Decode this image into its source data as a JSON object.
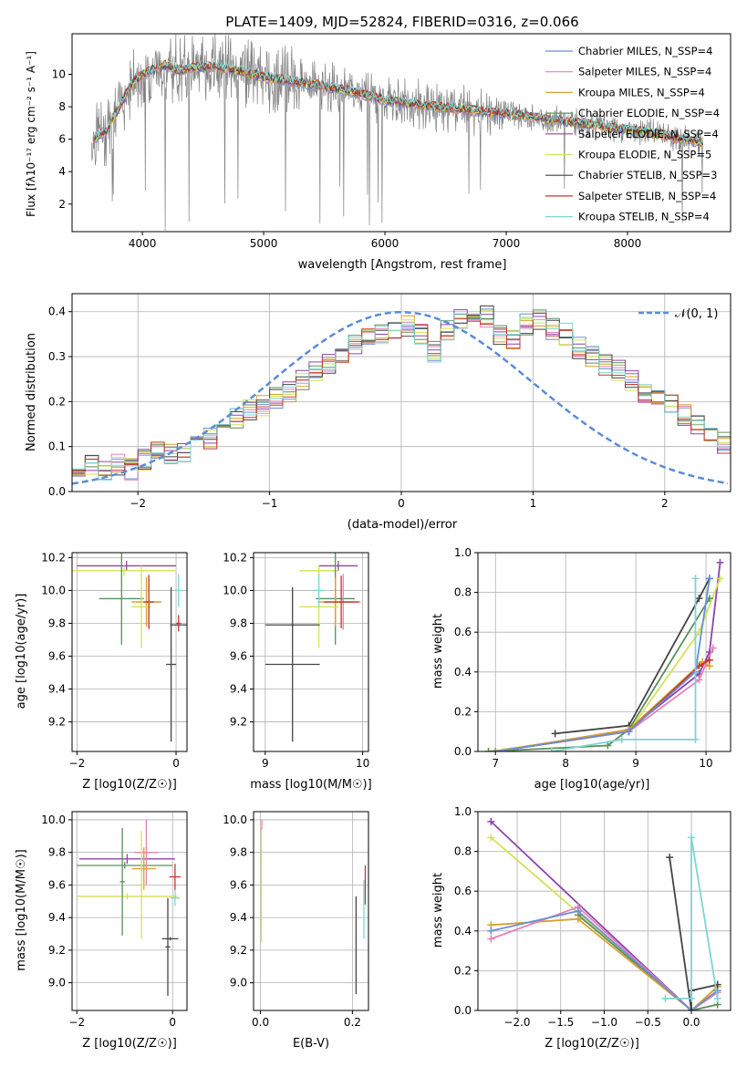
{
  "chart_data": [
    {
      "id": "spectrum",
      "type": "line",
      "title": "PLATE=1409, MJD=52824, FIBERID=0316, z=0.066",
      "xlabel": "wavelength [Angstrom, rest frame]",
      "ylabel": "Flux [fλ10⁻¹⁷ erg cm⁻² s⁻¹ A⁻¹]",
      "xlim": [
        3420,
        8850
      ],
      "ylim": [
        0.3,
        12.5
      ],
      "xticks": [
        4000,
        5000,
        6000,
        7000,
        8000
      ],
      "yticks": [
        2,
        4,
        6,
        8,
        10
      ],
      "grid": false,
      "legend_position": "top-right",
      "legend": [
        {
          "label": "Chabrier MILES, N_SSP=4",
          "color": "#6a8fd6"
        },
        {
          "label": "Salpeter MILES, N_SSP=4",
          "color": "#e282b9"
        },
        {
          "label": "Kroupa MILES, N_SSP=4",
          "color": "#d9a02e"
        },
        {
          "label": "Chabrier ELODIE, N_SSP=4",
          "color": "#5a8f5c"
        },
        {
          "label": "Salpeter ELODIE, N_SSP=4",
          "color": "#8e44ad"
        },
        {
          "label": "Kroupa ELODIE, N_SSP=5",
          "color": "#d4e157"
        },
        {
          "label": "Chabrier STELIB, N_SSP=3",
          "color": "#444444"
        },
        {
          "label": "Salpeter STELIB, N_SSP=4",
          "color": "#c0392b"
        },
        {
          "label": "Kroupa STELIB, N_SSP=4",
          "color": "#7fd3d3"
        }
      ],
      "observed_color": "#808080",
      "model_anchor_points": {
        "x": [
          3600,
          3700,
          3800,
          3900,
          4000,
          4100,
          4200,
          4300,
          4400,
          4600,
          4800,
          5000,
          5200,
          5400,
          5600,
          5800,
          6000,
          6200,
          6400,
          6600,
          6800,
          7000,
          7200,
          7400,
          7600,
          7800,
          8000,
          8200,
          8400,
          8600
        ],
        "y": [
          6.0,
          6.5,
          7.8,
          9.3,
          10.0,
          10.3,
          10.6,
          10.2,
          10.4,
          10.5,
          10.2,
          9.8,
          9.6,
          9.4,
          9.1,
          8.8,
          8.4,
          8.2,
          8.0,
          7.9,
          7.7,
          7.6,
          7.4,
          7.2,
          7.0,
          6.8,
          6.6,
          6.4,
          6.1,
          5.8
        ]
      }
    },
    {
      "id": "residuals",
      "type": "histogram",
      "xlabel": "(data-model)/error",
      "ylabel": "Normed distribution",
      "xlim": [
        -2.5,
        2.5
      ],
      "ylim": [
        0,
        0.44
      ],
      "xticks": [
        -2,
        -1,
        0,
        1,
        2
      ],
      "yticks": [
        0.0,
        0.1,
        0.2,
        0.3,
        0.4
      ],
      "grid": true,
      "legend_position": "top-right",
      "reference_curve": {
        "label": "𝒩(0, 1)",
        "color": "#5b8bd9"
      },
      "bin_width": 0.1,
      "bin_start": -2.5,
      "approx_shape": {
        "values": [
          0.05,
          0.06,
          0.05,
          0.06,
          0.05,
          0.07,
          0.09,
          0.08,
          0.09,
          0.1,
          0.12,
          0.13,
          0.16,
          0.18,
          0.19,
          0.21,
          0.22,
          0.25,
          0.27,
          0.28,
          0.3,
          0.33,
          0.34,
          0.35,
          0.36,
          0.37,
          0.35,
          0.31,
          0.36,
          0.38,
          0.37,
          0.39,
          0.35,
          0.34,
          0.37,
          0.38,
          0.36,
          0.35,
          0.32,
          0.3,
          0.28,
          0.27,
          0.25,
          0.22,
          0.2,
          0.19,
          0.17,
          0.15,
          0.12,
          0.11,
          0.1,
          0.09,
          0.08,
          0.07,
          0.06,
          0.06,
          0.05
        ]
      }
    },
    {
      "id": "age_vs_Z",
      "type": "errorbar",
      "xlabel": "Z [log10(Z/Z☉)]",
      "ylabel": "age [log10(age/yr)]",
      "xlim": [
        -2.1,
        0.22
      ],
      "ylim": [
        9.02,
        10.23
      ],
      "xticks": [
        -2,
        0
      ],
      "yticks": [
        9.2,
        9.4,
        9.6,
        9.8,
        10.0,
        10.2
      ],
      "grid": true,
      "points": [
        {
          "color": "#8e44ad",
          "x": -1.0,
          "xerr": 1.0,
          "y": 10.15,
          "yerr": 0.03
        },
        {
          "color": "#d4e157",
          "x": -1.05,
          "xerr": 1.05,
          "y": 10.12,
          "yerr": 0.03
        },
        {
          "color": "#5a8f5c",
          "x": -1.1,
          "xerr": 0.45,
          "y": 9.95,
          "yerr": 0.28
        },
        {
          "color": "#e282b9",
          "x": -0.55,
          "xerr": 0.25,
          "y": 9.93,
          "yerr": 0.17
        },
        {
          "color": "#d9a02e",
          "x": -0.6,
          "xerr": 0.3,
          "y": 9.93,
          "yerr": 0.15
        },
        {
          "color": "#d4e157",
          "x": -0.7,
          "xerr": 0.2,
          "y": 9.9,
          "yerr": 0.25
        },
        {
          "color": "#c0392b",
          "x": -0.55,
          "xerr": 0.1,
          "y": 9.93,
          "yerr": 0.16
        },
        {
          "color": "#7fd3d3",
          "x": 0.05,
          "xerr": 0.07,
          "y": 10.0,
          "yerr": 0.1
        },
        {
          "color": "#444444",
          "x": -0.1,
          "xerr": 0.1,
          "y": 9.55,
          "yerr": 0.47
        },
        {
          "color": "#444444",
          "x": 0.05,
          "xerr": 0.17,
          "y": 9.79,
          "yerr": 0.01
        },
        {
          "color": "#c0392b",
          "x": 0.05,
          "xerr": 0.05,
          "y": 9.8,
          "yerr": 0.05
        }
      ]
    },
    {
      "id": "age_vs_mass",
      "type": "errorbar",
      "xlabel": "mass [log10(M/M☉)]",
      "ylabel": "",
      "xlim": [
        8.88,
        10.06
      ],
      "ylim": [
        9.02,
        10.23
      ],
      "xticks": [
        9,
        10
      ],
      "yticks": [
        9.2,
        9.4,
        9.6,
        9.8,
        10.0,
        10.2
      ],
      "grid": true,
      "points": [
        {
          "color": "#8e44ad",
          "x": 9.75,
          "xerr": 0.2,
          "y": 10.15,
          "yerr": 0.03
        },
        {
          "color": "#d4e157",
          "x": 9.55,
          "xerr": 0.2,
          "y": 10.12,
          "yerr": 0.03
        },
        {
          "color": "#5a8f5c",
          "x": 9.72,
          "xerr": 0.2,
          "y": 9.95,
          "yerr": 0.28
        },
        {
          "color": "#e282b9",
          "x": 9.8,
          "xerr": 0.18,
          "y": 9.93,
          "yerr": 0.17
        },
        {
          "color": "#d9a02e",
          "x": 9.72,
          "xerr": 0.18,
          "y": 9.93,
          "yerr": 0.15
        },
        {
          "color": "#d4e157",
          "x": 9.55,
          "xerr": 0.2,
          "y": 9.9,
          "yerr": 0.25
        },
        {
          "color": "#c0392b",
          "x": 9.78,
          "xerr": 0.18,
          "y": 9.93,
          "yerr": 0.16
        },
        {
          "color": "#7fd3d3",
          "x": 9.55,
          "xerr": 0.06,
          "y": 10.0,
          "yerr": 0.1
        },
        {
          "color": "#444444",
          "x": 9.28,
          "xerr": 0.28,
          "y": 9.55,
          "yerr": 0.47
        },
        {
          "color": "#444444",
          "x": 9.28,
          "xerr": 0.28,
          "y": 9.79,
          "yerr": 0.01
        }
      ]
    },
    {
      "id": "mass_weight_vs_age",
      "type": "line",
      "xlabel": "age [log10(age/yr)]",
      "ylabel": "mass weight",
      "xlim": [
        6.75,
        10.35
      ],
      "ylim": [
        0,
        1.0
      ],
      "xticks": [
        7,
        8,
        9,
        10
      ],
      "yticks": [
        0.0,
        0.2,
        0.4,
        0.6,
        0.8,
        1.0
      ],
      "grid": true,
      "series": [
        {
          "color": "#444444",
          "x": [
            7.85,
            8.9,
            9.9,
            10.05
          ],
          "y": [
            0.09,
            0.13,
            0.77,
            0.87
          ]
        },
        {
          "color": "#8e44ad",
          "x": [
            8.9,
            9.9,
            10.05,
            10.2
          ],
          "y": [
            0.11,
            0.39,
            0.5,
            0.95
          ]
        },
        {
          "color": "#d4e157",
          "x": [
            6.9,
            8.9,
            9.9,
            10.2
          ],
          "y": [
            0.0,
            0.1,
            0.6,
            0.87
          ]
        },
        {
          "color": "#5a8f5c",
          "x": [
            6.9,
            8.6,
            8.9,
            10.05
          ],
          "y": [
            0.0,
            0.03,
            0.11,
            0.77
          ]
        },
        {
          "color": "#d9a02e",
          "x": [
            7.0,
            8.9,
            9.95,
            10.05
          ],
          "y": [
            0.0,
            0.11,
            0.45,
            0.43
          ]
        },
        {
          "color": "#e282b9",
          "x": [
            7.0,
            8.9,
            9.9,
            10.1
          ],
          "y": [
            0.0,
            0.1,
            0.36,
            0.52
          ]
        },
        {
          "color": "#c0392b",
          "x": [
            7.0,
            8.9,
            9.9,
            10.05
          ],
          "y": [
            0.0,
            0.1,
            0.43,
            0.46
          ]
        },
        {
          "color": "#6a8fd6",
          "x": [
            7.0,
            8.9,
            9.85,
            10.05
          ],
          "y": [
            0.0,
            0.1,
            0.4,
            0.87
          ]
        },
        {
          "color": "#7fd3d3",
          "x": [
            7.8,
            8.8,
            9.85,
            9.85
          ],
          "y": [
            0.0,
            0.06,
            0.06,
            0.87
          ]
        }
      ]
    },
    {
      "id": "mass_vs_Z",
      "type": "errorbar",
      "xlabel": "Z [log10(Z/Z☉)]",
      "ylabel": "mass [log10(M/M☉)]",
      "xlim": [
        -2.1,
        0.3
      ],
      "ylim": [
        8.83,
        10.05
      ],
      "xticks": [
        -2,
        0
      ],
      "yticks": [
        9.0,
        9.2,
        9.4,
        9.6,
        9.8,
        10.0
      ],
      "grid": true,
      "points": [
        {
          "color": "#8e44ad",
          "x": -0.95,
          "xerr": 1.0,
          "y": 9.76,
          "yerr": 0.03
        },
        {
          "color": "#5a8f5c",
          "x": -1.0,
          "xerr": 1.0,
          "y": 9.72,
          "yerr": 0.02
        },
        {
          "color": "#d4e157",
          "x": -0.95,
          "xerr": 1.05,
          "y": 9.53,
          "yerr": 0.02
        },
        {
          "color": "#5a8f5c",
          "x": -1.05,
          "xerr": 0.05,
          "y": 9.62,
          "yerr": 0.33
        },
        {
          "color": "#e282b9",
          "x": -0.55,
          "xerr": 0.25,
          "y": 9.8,
          "yerr": 0.2
        },
        {
          "color": "#d9a02e",
          "x": -0.6,
          "xerr": 0.25,
          "y": 9.7,
          "yerr": 0.13
        },
        {
          "color": "#d4e157",
          "x": -0.65,
          "xerr": 0.05,
          "y": 9.6,
          "yerr": 0.33
        },
        {
          "color": "#c0392b",
          "x": 0.05,
          "xerr": 0.12,
          "y": 9.65,
          "yerr": 0.08
        },
        {
          "color": "#444444",
          "x": -0.05,
          "xerr": 0.17,
          "y": 9.27,
          "yerr": 0.01
        },
        {
          "color": "#444444",
          "x": -0.1,
          "xerr": 0.05,
          "y": 9.22,
          "yerr": 0.3
        },
        {
          "color": "#7fd3d3",
          "x": 0.05,
          "xerr": 0.1,
          "y": 9.52,
          "yerr": 0.05
        }
      ]
    },
    {
      "id": "mass_vs_ebv",
      "type": "errorbar",
      "xlabel": "E(B-V)",
      "ylabel": "",
      "xlim": [
        -0.015,
        0.235
      ],
      "ylim": [
        8.83,
        10.05
      ],
      "xticks": [
        0.0,
        0.2
      ],
      "yticks": [
        9.0,
        9.2,
        9.4,
        9.6,
        9.8,
        10.0
      ],
      "grid": true,
      "points": [
        {
          "color": "#d4e157",
          "x": 0.002,
          "y": 9.6,
          "yerr": 0.35
        },
        {
          "color": "#e282b9",
          "x": 0.003,
          "y": 9.97,
          "yerr": 0.03
        },
        {
          "color": "#444444",
          "x": 0.208,
          "y": 9.23,
          "yerr": 0.3
        },
        {
          "color": "#c0392b",
          "x": 0.228,
          "y": 9.6,
          "yerr": 0.12
        },
        {
          "color": "#7fd3d3",
          "x": 0.225,
          "y": 9.45,
          "yerr": 0.18
        }
      ]
    },
    {
      "id": "mass_weight_vs_Z",
      "type": "line",
      "xlabel": "Z [log10(Z/Z☉)]",
      "ylabel": "mass weight",
      "xlim": [
        -2.45,
        0.45
      ],
      "ylim": [
        0,
        1.0
      ],
      "xticks": [
        -2.0,
        -1.5,
        -1.0,
        -0.5,
        0.0
      ],
      "yticks": [
        0.0,
        0.2,
        0.4,
        0.6,
        0.8,
        1.0
      ],
      "grid": true,
      "series": [
        {
          "color": "#8e44ad",
          "x": [
            -2.3,
            0.0,
            0.3
          ],
          "y": [
            0.95,
            0.0,
            0.1
          ]
        },
        {
          "color": "#d4e157",
          "x": [
            -2.3,
            0.0,
            0.3
          ],
          "y": [
            0.87,
            0.0,
            0.12
          ]
        },
        {
          "color": "#5a8f5c",
          "x": [
            -1.3,
            0.0,
            0.3
          ],
          "y": [
            0.48,
            0.0,
            0.03
          ]
        },
        {
          "color": "#d9a02e",
          "x": [
            -2.3,
            -1.3,
            0.0,
            0.3
          ],
          "y": [
            0.43,
            0.46,
            0.0,
            0.12
          ]
        },
        {
          "color": "#e282b9",
          "x": [
            -2.3,
            -1.3,
            0.0,
            0.3
          ],
          "y": [
            0.36,
            0.52,
            0.0,
            0.09
          ]
        },
        {
          "color": "#6a8fd6",
          "x": [
            -2.3,
            -1.3,
            0.0,
            0.3
          ],
          "y": [
            0.4,
            0.5,
            0.0,
            0.1
          ]
        },
        {
          "color": "#444444",
          "x": [
            -0.25,
            0.0,
            0.0,
            0.3
          ],
          "y": [
            0.77,
            0.0,
            0.1,
            0.13
          ]
        },
        {
          "color": "#7fd3d3",
          "x": [
            -0.3,
            0.0,
            0.0,
            0.3
          ],
          "y": [
            0.06,
            0.06,
            0.87,
            0.06
          ]
        }
      ]
    }
  ]
}
